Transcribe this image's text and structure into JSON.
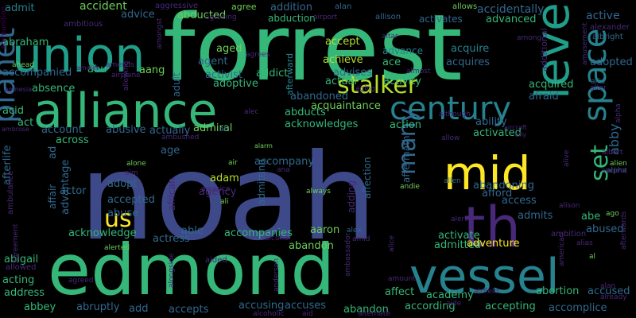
{
  "palette": {
    "background": "#000000",
    "yellow": "#fde725",
    "lime": "#b5de2b",
    "green": "#6ece58",
    "teal": "#35b779",
    "sea": "#1f9e89",
    "cyan": "#26828e",
    "steel": "#31688e",
    "blue": "#3e4989",
    "indigo": "#482878",
    "violet": "#440154"
  },
  "words": [
    "noah",
    "forrest",
    "edmond",
    "alliance",
    "union",
    "vessel",
    "level",
    "mid",
    "century",
    "th",
    "space",
    "planet",
    "set",
    "stalker",
    "many",
    "us",
    "abby",
    "accident",
    "aggressive",
    "agree",
    "addition",
    "alan",
    "allows",
    "active",
    "admit",
    "abraham",
    "advice",
    "abducted",
    "ambitious",
    "agreeing",
    "abduction",
    "airport",
    "allison",
    "activates",
    "accidentally",
    "advanced",
    "ambition",
    "ammunition",
    "ahead",
    "almost",
    "among",
    "altar",
    "albright",
    "alexander",
    "amends",
    "airplane",
    "amongst",
    "agrees",
    "afterward",
    "advance",
    "acquire",
    "acquires",
    "adopted",
    "additional",
    "amusement",
    "allie",
    "alter",
    "aged",
    "accept",
    "ace",
    "achieve",
    "advises",
    "abu",
    "accompanied",
    "agent",
    "aang",
    "adult",
    "adoptive",
    "activist",
    "addict",
    "actual",
    "activity",
    "afraid",
    "acquired",
    "absence",
    "abandoned",
    "acquaintance",
    "amulet",
    "amnesia",
    "allowing",
    "aging",
    "ability",
    "alec",
    "although",
    "acid",
    "act",
    "account",
    "abusive",
    "actually",
    "admiral",
    "acknowledges",
    "abducts",
    "action",
    "activated",
    "aircraft",
    "ally",
    "allow",
    "ambrose",
    "ah",
    "alarm",
    "across",
    "age",
    "ambushed",
    "afterlife",
    "ad",
    "actor",
    "accompany",
    "adam",
    "air",
    "ali",
    "america",
    "admitting",
    "ana",
    "alone",
    "aim",
    "affection",
    "aftermath",
    "adding",
    "andie",
    "abandoning",
    "allen",
    "always",
    "african",
    "affair",
    "advantage",
    "agency",
    "accepted",
    "abuse",
    "adopt",
    "ambulance",
    "alien",
    "alpha",
    "ancient",
    "albert",
    "alice",
    "alive",
    "alison",
    "afford",
    "abe",
    "abused",
    "access",
    "admits",
    "ago",
    "alerted",
    "alert",
    "acknowledge",
    "able",
    "abandon",
    "actress",
    "aided",
    "accompanies",
    "aaron",
    "alex",
    "alcohol",
    "amid",
    "abigail",
    "activate",
    "admitted",
    "adventure",
    "alias",
    "afterwards",
    "allowed",
    "acting",
    "address",
    "anderson",
    "ambassador",
    "agreement",
    "agreed",
    "amount",
    "affect",
    "american",
    "alongside",
    "abortion",
    "accused",
    "alan",
    "already",
    "abbey",
    "abruptly",
    "add",
    "accepts",
    "accusing",
    "accuses",
    "academy",
    "according",
    "airfield",
    "aide",
    "accepting",
    "accomplice",
    "alcoholic",
    "aid",
    "abandon",
    "alternate",
    "al",
    "alpha"
  ]
}
